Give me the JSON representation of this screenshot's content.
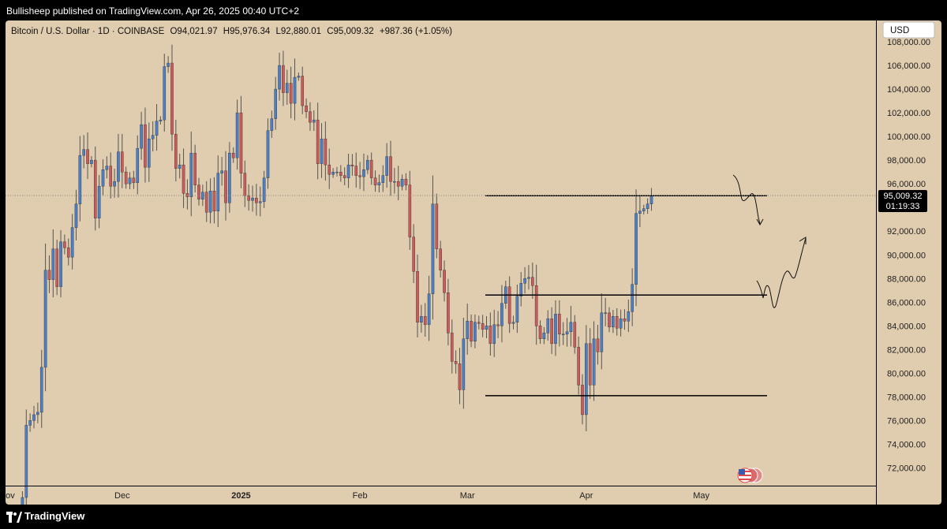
{
  "header": {
    "published_line": "Bullisheep published on TradingView.com, Apr 26, 2025 00:40 UTC+2"
  },
  "legend": {
    "symbol": "Bitcoin / U.S. Dollar · 1D · COINBASE",
    "open": "O94,021.97",
    "high": "H95,976.34",
    "low": "L92,880.01",
    "close": "C95,009.32",
    "change": "+987.36 (+1.05%)"
  },
  "currency_button": "USD",
  "price_label": {
    "value": "95,009.32",
    "countdown": "01:19:33"
  },
  "footer": {
    "brand": "TradingView"
  },
  "colors": {
    "background": "#e0ccae",
    "up": "#4a7fc9",
    "down": "#cc5a5a",
    "wick": "#555555",
    "line": "#000000"
  },
  "chart_data": {
    "type": "candlestick",
    "ylim": [
      70500,
      109800
    ],
    "y_ticks": [
      "108,000.00",
      "106,000.00",
      "104,000.00",
      "102,000.00",
      "100,000.00",
      "98,000.00",
      "96,000.00",
      "92,000.00",
      "90,000.00",
      "88,000.00",
      "86,000.00",
      "84,000.00",
      "82,000.00",
      "80,000.00",
      "78,000.00",
      "76,000.00",
      "74,000.00",
      "72,000.00"
    ],
    "x_labels": [
      {
        "label": "Nov",
        "date": "2024-11-01"
      },
      {
        "label": "Dec",
        "date": "2024-12-01"
      },
      {
        "label": "2025",
        "date": "2025-01-01"
      },
      {
        "label": "Feb",
        "date": "2025-02-01"
      },
      {
        "label": "Mar",
        "date": "2025-03-01"
      },
      {
        "label": "Apr",
        "date": "2025-04-01"
      },
      {
        "label": "May",
        "date": "2025-05-01"
      }
    ],
    "first_date": "2024-11-05",
    "last_date": "2025-04-25",
    "closes": [
      69500,
      75600,
      76000,
      76500,
      76700,
      80500,
      88700,
      87900,
      90500,
      87300,
      91100,
      90600,
      89800,
      92300,
      94300,
      98400,
      98900,
      97700,
      98000,
      93100,
      95800,
      97200,
      97500,
      95800,
      96200,
      98700,
      97000,
      96000,
      96500,
      96100,
      99000,
      101000,
      97400,
      99800,
      100100,
      101300,
      101400,
      105900,
      106200,
      100200,
      97300,
      97600,
      95200,
      94900,
      98600,
      95900,
      94700,
      95300,
      93600,
      95400,
      93700,
      96900,
      97100,
      94400,
      98600,
      98200,
      102000,
      96900,
      95000,
      94600,
      94800,
      94400,
      94500,
      96500,
      100500,
      101500,
      104000,
      106000,
      103700,
      104500,
      102800,
      105000,
      105100,
      102600,
      102100,
      101200,
      101400,
      97700,
      99800,
      97600,
      96800,
      97000,
      97000,
      96700,
      96500,
      97600,
      97500,
      96700,
      96600,
      97200,
      98000,
      96500,
      95900,
      96100,
      96700,
      98300,
      96200,
      96200,
      95800,
      96400,
      95900,
      91500,
      88600,
      84300,
      84800,
      84100,
      86700,
      94300,
      90500,
      88700,
      86800,
      83400,
      81000,
      80800,
      78600,
      82900,
      84400,
      82700,
      84300,
      84200,
      83700,
      84000,
      82500,
      84100,
      84000,
      85900,
      87300,
      84200,
      84300,
      86500,
      87600,
      88000,
      88100,
      87400,
      84000,
      82900,
      83400,
      84600,
      82500,
      85000,
      83300,
      83300,
      83500,
      84300,
      82200,
      79000,
      76500,
      82500,
      79000,
      82900,
      81800,
      85100,
      85100,
      83900,
      84800,
      83800,
      84600,
      84400,
      85200,
      87500,
      93500,
      93700,
      93900,
      94300,
      95000
    ]
  }
}
